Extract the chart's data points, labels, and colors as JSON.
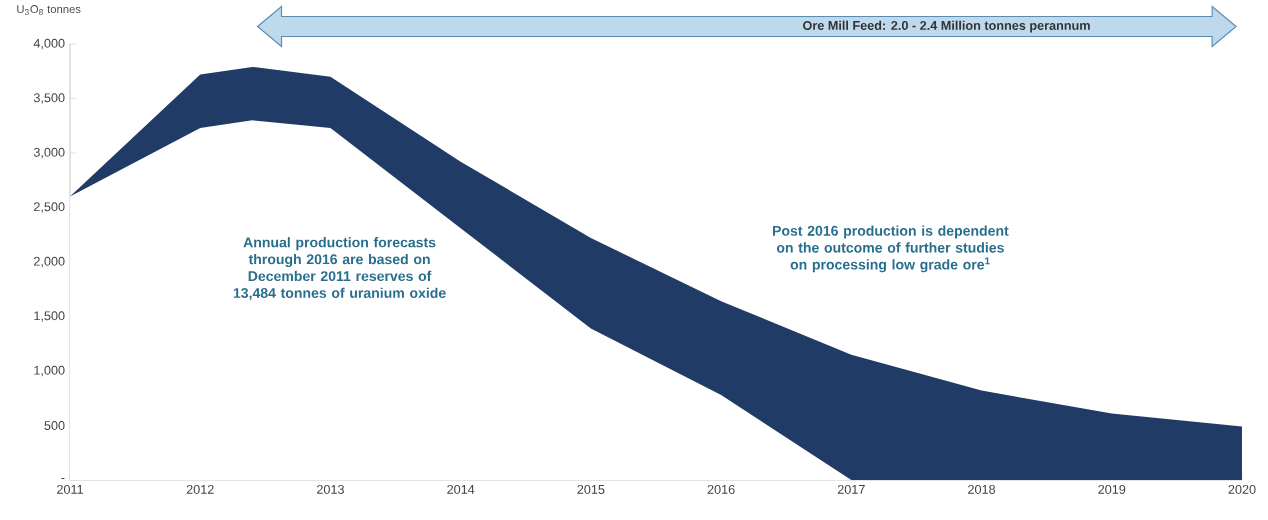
{
  "chart_data": {
    "type": "area",
    "ylabel": "U$_{3}$O$_{8}$ tonnes",
    "x": [
      2011,
      2012,
      2012.4,
      2013,
      2014,
      2015,
      2016,
      2017,
      2018,
      2019,
      2020
    ],
    "series": [
      {
        "color": "#ffffff",
        "values": [
          2600,
          3230,
          3300,
          3230,
          2310,
          1390,
          780,
          0,
          0,
          0,
          0
        ]
      },
      {
        "color": "#1f3b66",
        "values": [
          0,
          490,
          490,
          470,
          610,
          830,
          860,
          1150,
          820,
          610,
          490
        ]
      }
    ],
    "stacked": true,
    "xlim": [
      2011,
      2020
    ],
    "ylim": [
      0,
      4000
    ],
    "xticks": [
      2011,
      2012,
      2013,
      2014,
      2015,
      2016,
      2017,
      2018,
      2019,
      2020
    ],
    "yticks": [
      {
        "value": 0,
        "label": "-"
      },
      500,
      {
        "value": 1000,
        "label": "1,000"
      },
      {
        "value": 1500,
        "label": "1,500"
      },
      {
        "value": 2000,
        "label": "2,000"
      },
      {
        "value": 2500,
        "label": "2,500"
      },
      {
        "value": 3000,
        "label": "3,000"
      },
      {
        "value": 3500,
        "label": "3,500"
      },
      {
        "value": 4000,
        "label": "4,000"
      }
    ],
    "annotations": [
      "Ore Mill Feed: 2.0 - 2.4 Million tonnes perannum",
      "Annual production forecasts through 2016 are based on December 2011 reserves of 13,484 tonnes of uranium oxide",
      "Post 2016 production is dependent on the outcome of further studies on processing low grade ore$^{1}$"
    ],
    "grid": false
  }
}
